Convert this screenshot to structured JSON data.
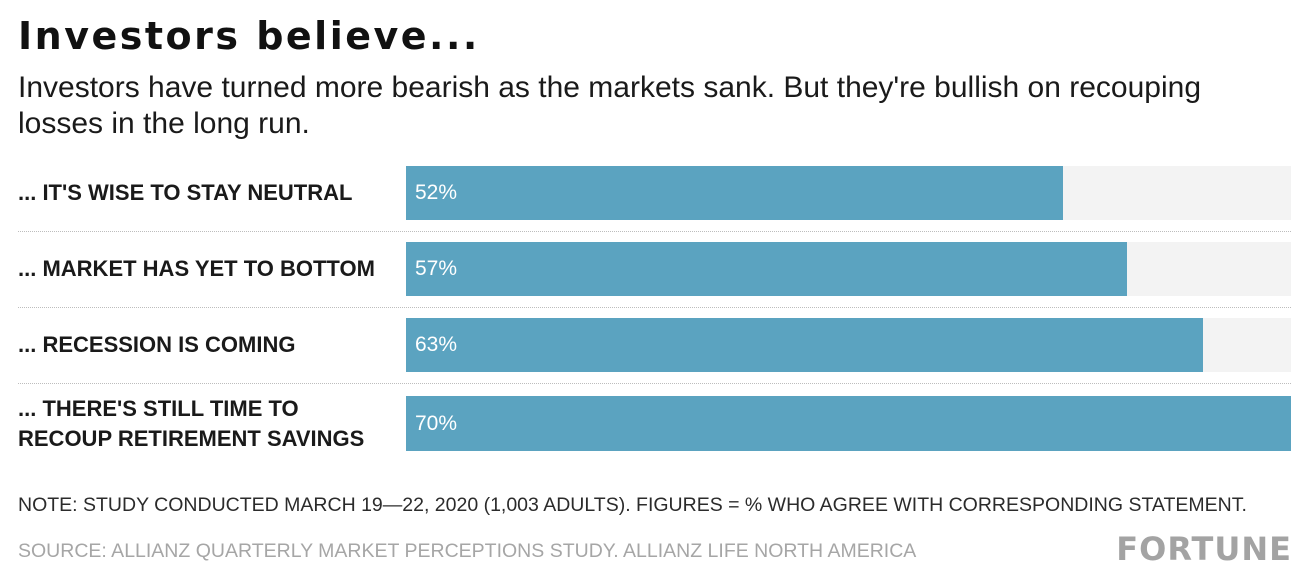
{
  "title": "Investors believe...",
  "subtitle": "Investors have turned more bearish as the markets sank. But they're bullish on recouping losses in the long run.",
  "colors": {
    "bar": "#5ba3c0",
    "track": "#f3f3f3",
    "value_text": "#ffffff"
  },
  "chart_data": {
    "type": "bar",
    "orientation": "horizontal",
    "categories": [
      "... IT'S WISE TO STAY NEUTRAL",
      "... MARKET HAS YET TO BOTTOM",
      "... RECESSION IS COMING",
      "... THERE'S STILL TIME TO RECOUP RETIREMENT SAVINGS"
    ],
    "values": [
      52,
      57,
      63,
      70
    ],
    "value_labels": [
      "52%",
      "57%",
      "63%",
      "70%"
    ],
    "xlim": [
      0,
      70
    ],
    "grid": false
  },
  "footer": {
    "note": "NOTE: STUDY CONDUCTED MARCH 19—22, 2020 (1,003 ADULTS). FIGURES = % WHO AGREE WITH CORRESPONDING STATEMENT.",
    "source": "SOURCE: ALLIANZ QUARTERLY MARKET PERCEPTIONS STUDY. ALLIANZ LIFE NORTH AMERICA",
    "brand": "FORTUNE"
  }
}
